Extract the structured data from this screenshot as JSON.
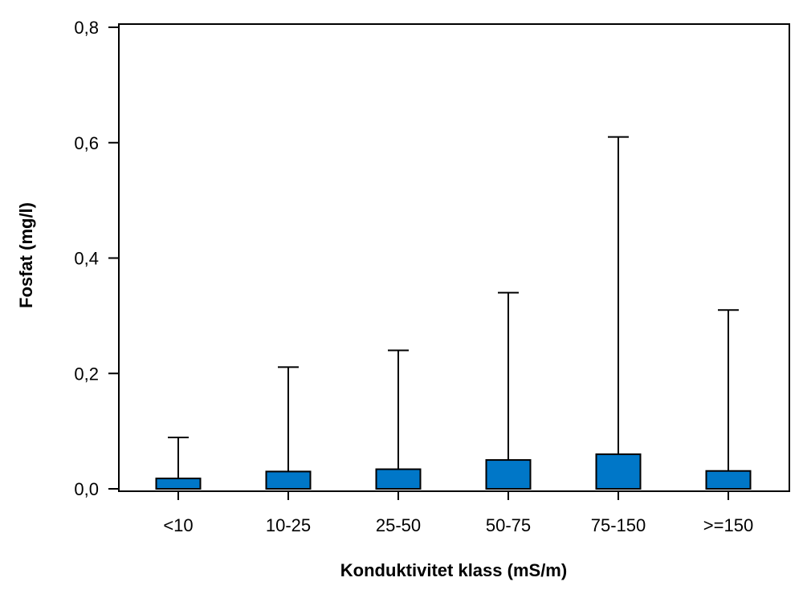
{
  "chart_data": {
    "type": "bar",
    "xlabel": "Konduktivitet klass (mS/m)",
    "ylabel": "Fosfat (mg/l)",
    "categories": [
      "<10",
      "10-25",
      "25-50",
      "50-75",
      "75-150",
      ">=150"
    ],
    "values": [
      0.018,
      0.03,
      0.034,
      0.05,
      0.06,
      0.031
    ],
    "error_upper": [
      0.089,
      0.211,
      0.24,
      0.34,
      0.61,
      0.31
    ],
    "ylim": [
      0,
      0.8
    ],
    "yticks": [
      0.0,
      0.2,
      0.4,
      0.6,
      0.8
    ],
    "ytick_labels": [
      "0,0",
      "0,2",
      "0,4",
      "0,6",
      "0,8"
    ],
    "grid": false,
    "legend": "none",
    "colors": {
      "bar": "#0077c8",
      "stroke": "#000000"
    }
  }
}
